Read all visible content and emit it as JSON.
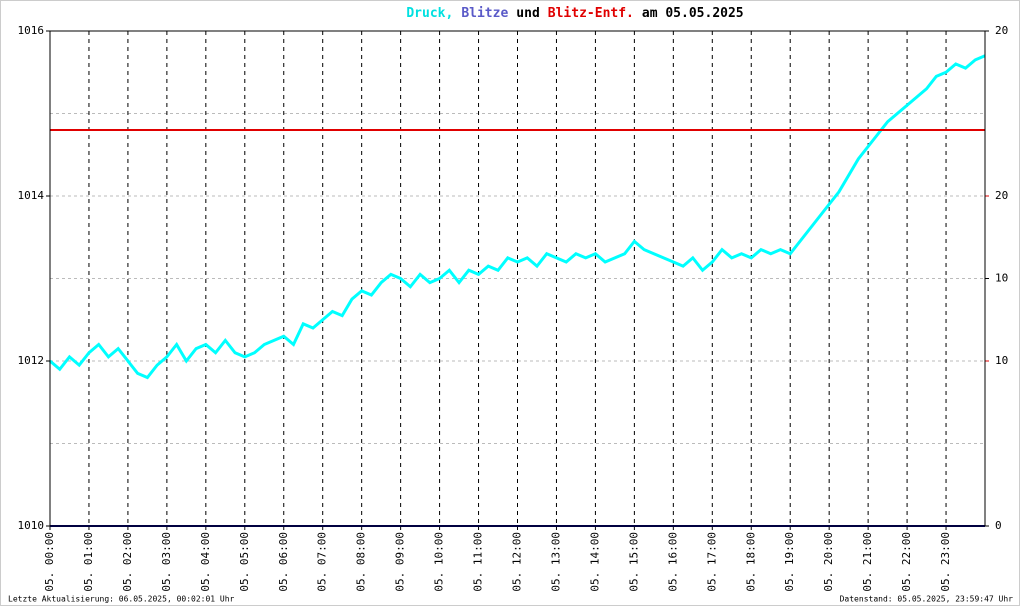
{
  "chart_data": {
    "type": "line",
    "title": [
      "Druck,",
      "Blitze",
      "und",
      "Blitz-Entf.",
      "am 05.05.2025"
    ],
    "title_colors": [
      "#00e0e0",
      "#5a5ac8",
      "#000000",
      "#e00000",
      "#000000"
    ],
    "footer_left": "Letzte Aktualisierung: 06.05.2025, 00:02:01 Uhr",
    "footer_right": "Datenstand: 05.05.2025, 23:59:47 Uhr",
    "xlim": [
      0,
      24
    ],
    "xticks": [
      {
        "value": 0,
        "label": "05. 00:00"
      },
      {
        "value": 1,
        "label": "05. 01:00"
      },
      {
        "value": 2,
        "label": "05. 02:00"
      },
      {
        "value": 3,
        "label": "05. 03:00"
      },
      {
        "value": 4,
        "label": "05. 04:00"
      },
      {
        "value": 5,
        "label": "05. 05:00"
      },
      {
        "value": 6,
        "label": "05. 06:00"
      },
      {
        "value": 7,
        "label": "05. 07:00"
      },
      {
        "value": 8,
        "label": "05. 08:00"
      },
      {
        "value": 9,
        "label": "05. 09:00"
      },
      {
        "value": 10,
        "label": "05. 10:00"
      },
      {
        "value": 11,
        "label": "05. 11:00"
      },
      {
        "value": 12,
        "label": "05. 12:00"
      },
      {
        "value": 13,
        "label": "05. 13:00"
      },
      {
        "value": 14,
        "label": "05. 14:00"
      },
      {
        "value": 15,
        "label": "05. 15:00"
      },
      {
        "value": 16,
        "label": "05. 16:00"
      },
      {
        "value": 17,
        "label": "05. 17:00"
      },
      {
        "value": 18,
        "label": "05. 18:00"
      },
      {
        "value": 19,
        "label": "05. 19:00"
      },
      {
        "value": 20,
        "label": "05. 20:00"
      },
      {
        "value": 21,
        "label": "05. 21:00"
      },
      {
        "value": 22,
        "label": "05. 22:00"
      },
      {
        "value": 23,
        "label": "05. 23:00"
      }
    ],
    "ylim": [
      1010,
      1016
    ],
    "yticks": [
      1010,
      1012,
      1014,
      1016
    ],
    "yminor": [
      1011,
      1013,
      1015
    ],
    "y2lim": [
      0,
      20
    ],
    "y2ticks": [
      0,
      10,
      20
    ],
    "y2_color": "#000000",
    "y3lim": [
      0,
      30
    ],
    "y3ticks": [
      10,
      20
    ],
    "y3_color": "#e00000",
    "grid": true,
    "series": [
      {
        "color": "#00ffff",
        "axis": "y",
        "x": [
          0,
          0.25,
          0.5,
          0.75,
          1,
          1.25,
          1.5,
          1.75,
          2,
          2.25,
          2.5,
          2.75,
          3,
          3.25,
          3.5,
          3.75,
          4,
          4.25,
          4.5,
          4.75,
          5,
          5.25,
          5.5,
          5.75,
          6,
          6.25,
          6.5,
          6.75,
          7,
          7.25,
          7.5,
          7.75,
          8,
          8.25,
          8.5,
          8.75,
          9,
          9.25,
          9.5,
          9.75,
          10,
          10.25,
          10.5,
          10.75,
          11,
          11.25,
          11.5,
          11.75,
          12,
          12.25,
          12.5,
          12.75,
          13,
          13.25,
          13.5,
          13.75,
          14,
          14.25,
          14.5,
          14.75,
          15,
          15.25,
          15.5,
          15.75,
          16,
          16.25,
          16.5,
          16.75,
          17,
          17.25,
          17.5,
          17.75,
          18,
          18.25,
          18.5,
          18.75,
          19,
          19.25,
          19.5,
          19.75,
          20,
          20.25,
          20.5,
          20.75,
          21,
          21.25,
          21.5,
          21.75,
          22,
          22.25,
          22.5,
          22.75,
          23,
          23.25,
          23.5,
          23.75,
          24
        ],
        "values": [
          1012.0,
          1011.9,
          1012.05,
          1011.95,
          1012.1,
          1012.2,
          1012.05,
          1012.15,
          1012.0,
          1011.85,
          1011.8,
          1011.95,
          1012.05,
          1012.2,
          1012.0,
          1012.15,
          1012.2,
          1012.1,
          1012.25,
          1012.1,
          1012.05,
          1012.1,
          1012.2,
          1012.25,
          1012.3,
          1012.2,
          1012.45,
          1012.4,
          1012.5,
          1012.6,
          1012.55,
          1012.75,
          1012.85,
          1012.8,
          1012.95,
          1013.05,
          1013.0,
          1012.9,
          1013.05,
          1012.95,
          1013.0,
          1013.1,
          1012.95,
          1013.1,
          1013.05,
          1013.15,
          1013.1,
          1013.25,
          1013.2,
          1013.25,
          1013.15,
          1013.3,
          1013.25,
          1013.2,
          1013.3,
          1013.25,
          1013.3,
          1013.2,
          1013.25,
          1013.3,
          1013.45,
          1013.35,
          1013.3,
          1013.25,
          1013.2,
          1013.15,
          1013.25,
          1013.1,
          1013.2,
          1013.35,
          1013.25,
          1013.3,
          1013.25,
          1013.35,
          1013.3,
          1013.35,
          1013.3,
          1013.45,
          1013.6,
          1013.75,
          1013.9,
          1014.05,
          1014.25,
          1014.45,
          1014.6,
          1014.75,
          1014.9,
          1015.0,
          1015.1,
          1015.2,
          1015.3,
          1015.45,
          1015.5,
          1015.6,
          1015.55,
          1015.65,
          1015.7
        ]
      },
      {
        "color": "#e00000",
        "axis": "y3",
        "x": [
          0,
          24
        ],
        "values": [
          24,
          24
        ]
      },
      {
        "color": "#000080",
        "axis": "y2",
        "x": [
          0,
          24
        ],
        "values": [
          0,
          0
        ]
      }
    ]
  }
}
